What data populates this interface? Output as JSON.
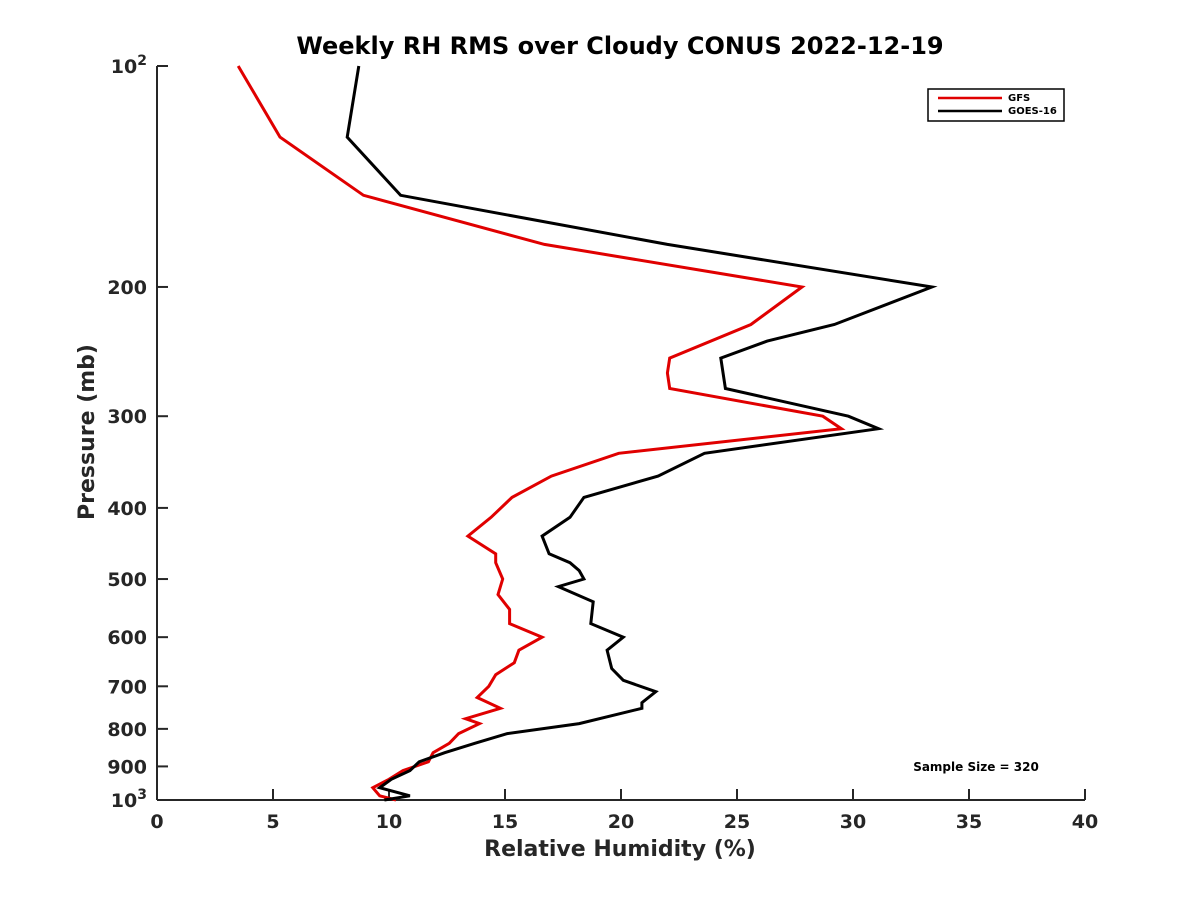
{
  "chart_data": {
    "type": "line",
    "title": "Weekly RH RMS over Cloudy CONUS 2022-12-19",
    "xlabel": "Relative Humidity (%)",
    "ylabel": "Pressure (mb)",
    "xlim": [
      0,
      40
    ],
    "ylim": [
      100,
      1000
    ],
    "y_scale": "log",
    "y_reversed": true,
    "x_ticks": [
      "0",
      "5",
      "10",
      "15",
      "20",
      "25",
      "30",
      "35",
      "40"
    ],
    "y_ticks": [
      {
        "value": 100,
        "label": "10",
        "sup": "2"
      },
      {
        "value": 200,
        "label": "200",
        "sup": ""
      },
      {
        "value": 300,
        "label": "300",
        "sup": ""
      },
      {
        "value": 400,
        "label": "400",
        "sup": ""
      },
      {
        "value": 500,
        "label": "500",
        "sup": ""
      },
      {
        "value": 600,
        "label": "600",
        "sup": ""
      },
      {
        "value": 700,
        "label": "700",
        "sup": ""
      },
      {
        "value": 800,
        "label": "800",
        "sup": ""
      },
      {
        "value": 900,
        "label": "900",
        "sup": ""
      },
      {
        "value": 1000,
        "label": "10",
        "sup": "3"
      }
    ],
    "grid": false,
    "legend_position": "top-right",
    "annotation": "Sample Size = 320",
    "series": [
      {
        "name": "GFS",
        "color": "#e00000",
        "points": [
          [
            3.5,
            100
          ],
          [
            5.3,
            125
          ],
          [
            8.9,
            150
          ],
          [
            16.7,
            175
          ],
          [
            27.8,
            200
          ],
          [
            25.6,
            225
          ],
          [
            22.1,
            250
          ],
          [
            22.0,
            262
          ],
          [
            22.1,
            275
          ],
          [
            28.7,
            300
          ],
          [
            29.5,
            312
          ],
          [
            19.9,
            337
          ],
          [
            17.0,
            362
          ],
          [
            15.3,
            387
          ],
          [
            14.4,
            412
          ],
          [
            13.4,
            437
          ],
          [
            14.6,
            462
          ],
          [
            14.6,
            475
          ],
          [
            14.9,
            500
          ],
          [
            14.7,
            525
          ],
          [
            15.2,
            550
          ],
          [
            15.2,
            575
          ],
          [
            16.6,
            600
          ],
          [
            15.6,
            625
          ],
          [
            15.4,
            650
          ],
          [
            14.6,
            675
          ],
          [
            14.3,
            700
          ],
          [
            13.8,
            725
          ],
          [
            14.8,
            750
          ],
          [
            13.3,
            775
          ],
          [
            13.9,
            787
          ],
          [
            13.0,
            812
          ],
          [
            12.6,
            837
          ],
          [
            11.9,
            862
          ],
          [
            11.7,
            887
          ],
          [
            10.6,
            912
          ],
          [
            10.0,
            937
          ],
          [
            9.3,
            962
          ],
          [
            9.6,
            987
          ],
          [
            10.3,
            1000
          ]
        ]
      },
      {
        "name": "GOES-16",
        "color": "#000000",
        "points": [
          [
            8.7,
            100
          ],
          [
            8.2,
            125
          ],
          [
            10.5,
            150
          ],
          [
            22.0,
            175
          ],
          [
            33.4,
            200
          ],
          [
            29.2,
            225
          ],
          [
            26.3,
            237
          ],
          [
            24.3,
            250
          ],
          [
            24.5,
            275
          ],
          [
            29.8,
            300
          ],
          [
            31.1,
            312
          ],
          [
            23.6,
            337
          ],
          [
            21.6,
            362
          ],
          [
            18.4,
            387
          ],
          [
            17.8,
            412
          ],
          [
            16.6,
            437
          ],
          [
            16.9,
            462
          ],
          [
            17.8,
            475
          ],
          [
            18.2,
            487
          ],
          [
            18.4,
            500
          ],
          [
            17.3,
            512
          ],
          [
            18.8,
            537
          ],
          [
            18.7,
            575
          ],
          [
            20.1,
            600
          ],
          [
            19.4,
            625
          ],
          [
            19.6,
            662
          ],
          [
            20.1,
            687
          ],
          [
            21.5,
            712
          ],
          [
            20.9,
            737
          ],
          [
            20.9,
            750
          ],
          [
            18.2,
            787
          ],
          [
            15.1,
            812
          ],
          [
            13.7,
            837
          ],
          [
            12.4,
            862
          ],
          [
            11.3,
            887
          ],
          [
            10.9,
            912
          ],
          [
            10.1,
            937
          ],
          [
            9.6,
            962
          ],
          [
            10.9,
            987
          ],
          [
            9.8,
            1000
          ]
        ]
      }
    ]
  }
}
